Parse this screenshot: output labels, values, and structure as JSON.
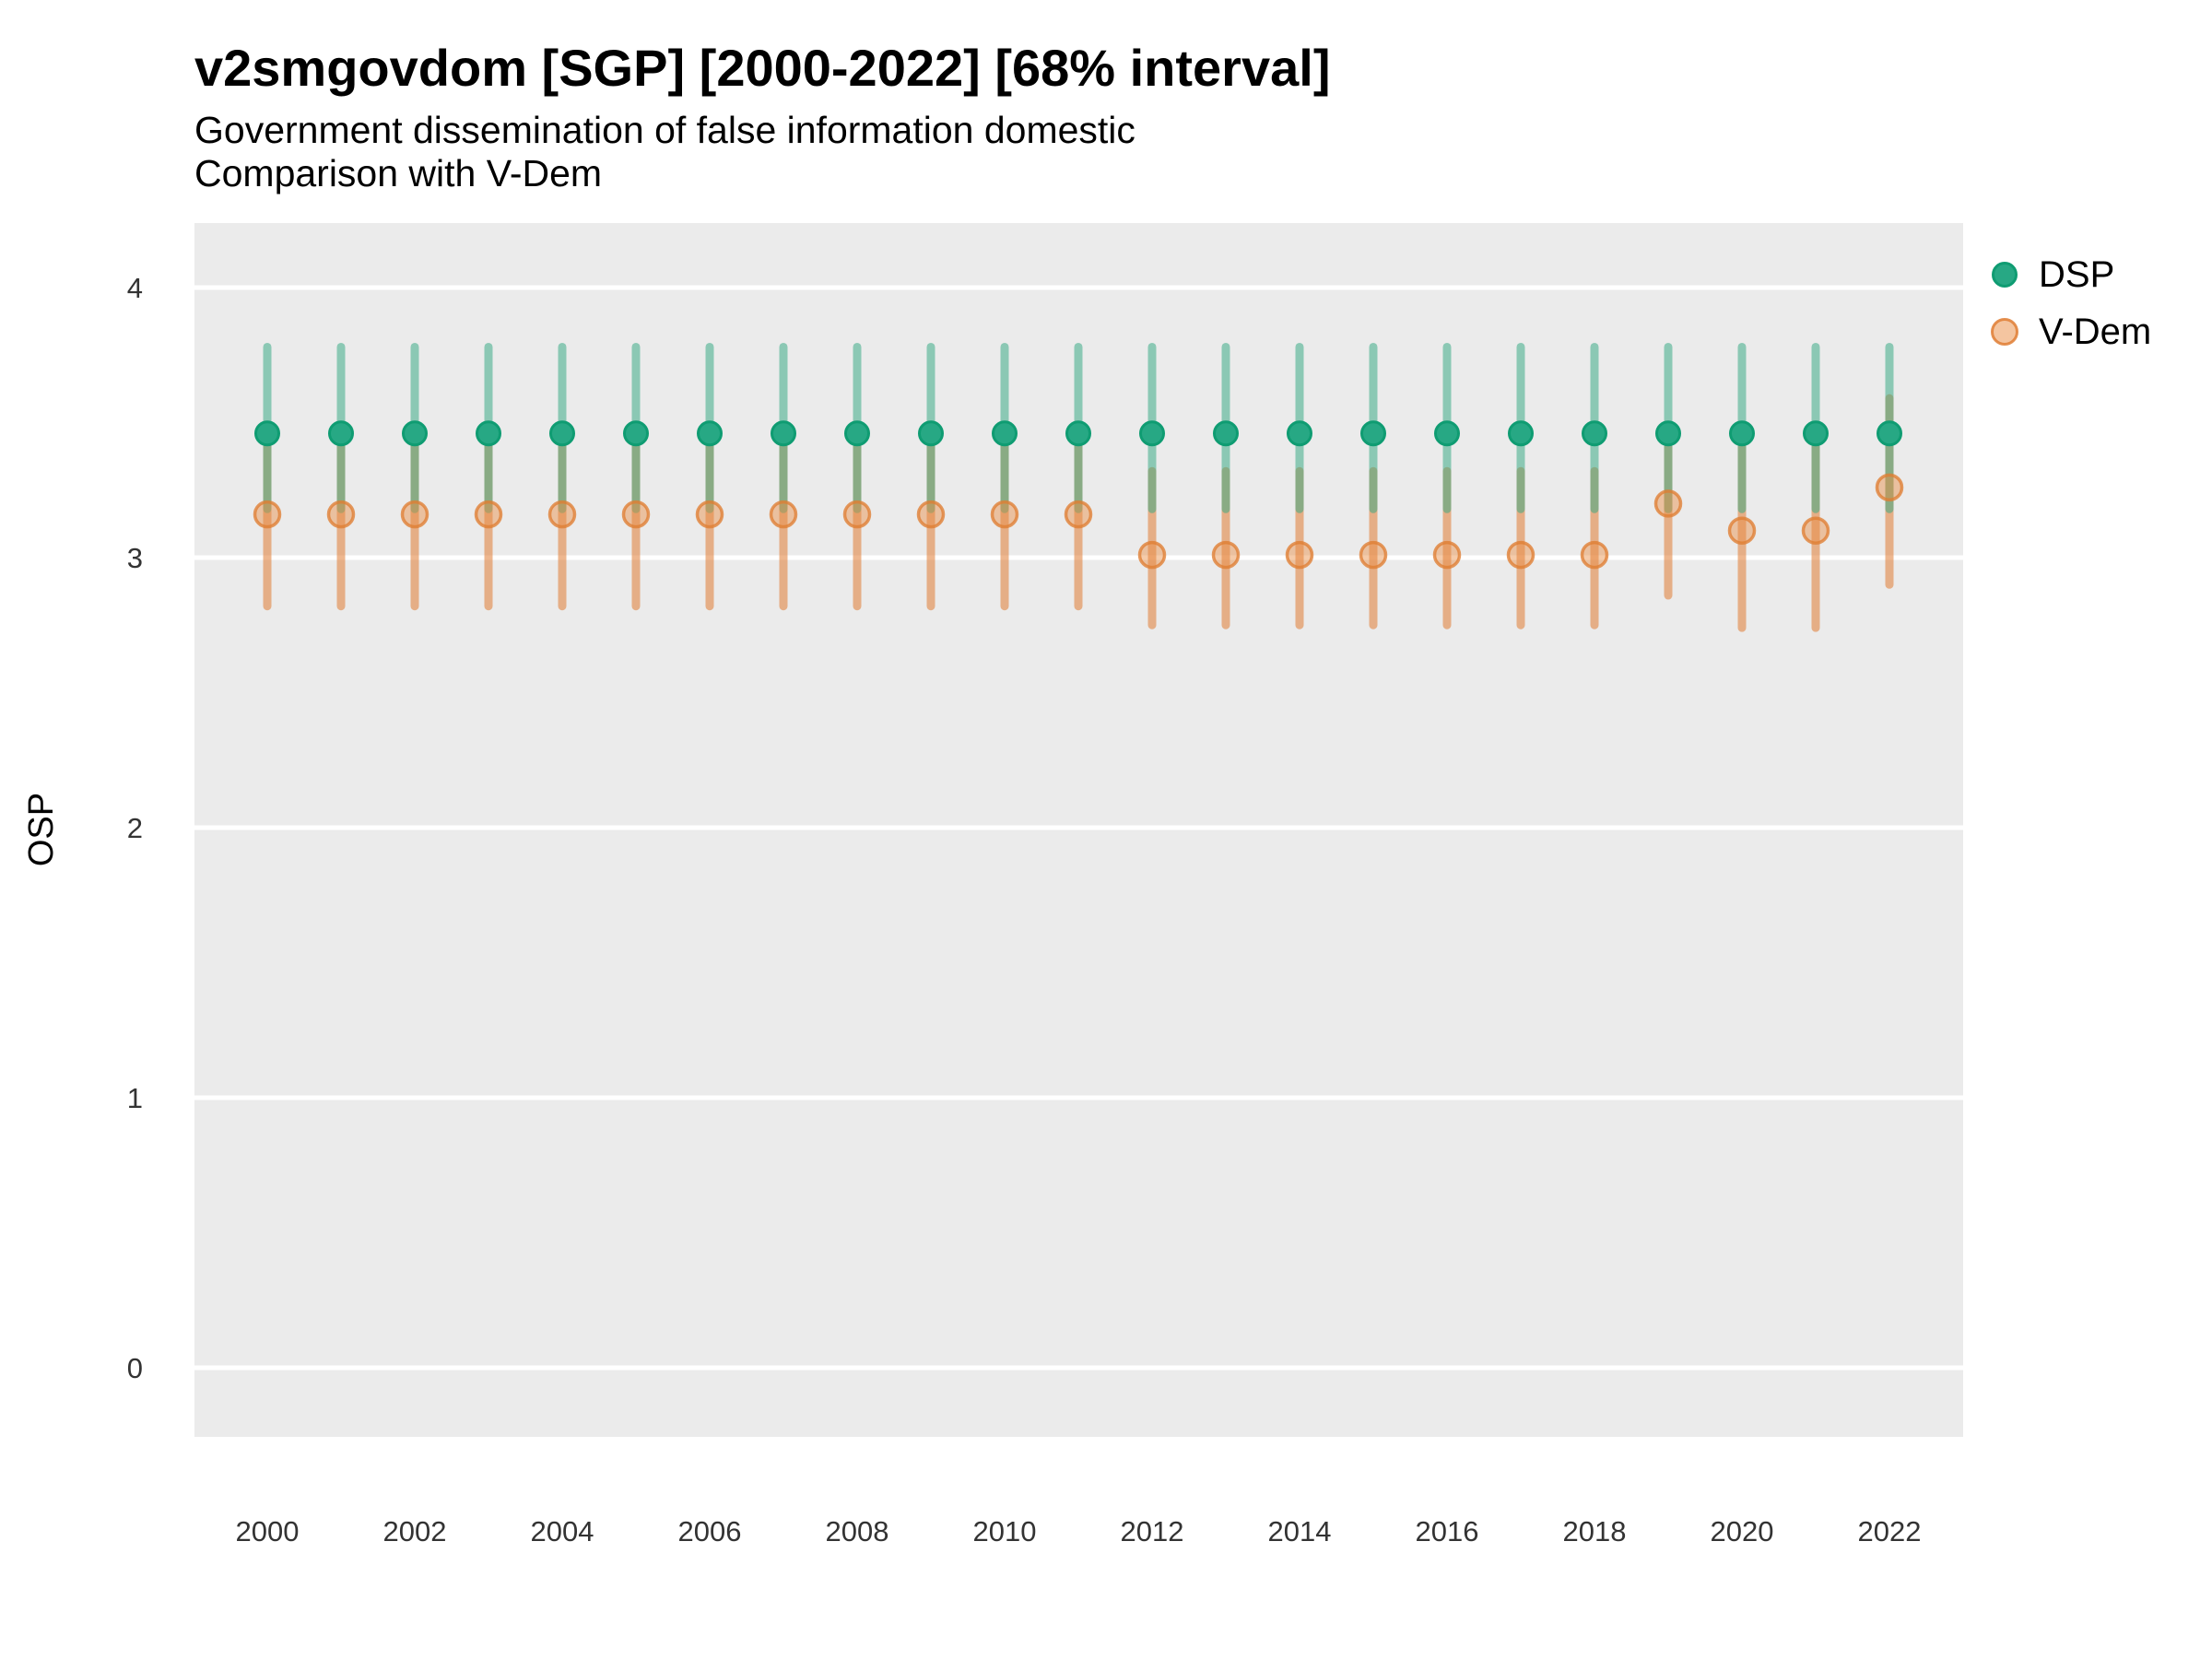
{
  "colors": {
    "background": "#FFFFFF",
    "panel": "#EBEBEB",
    "gridline": "#FFFFFF",
    "title_text": "#000000",
    "tick_text": "#333333",
    "dsp_green": "#27A884",
    "vdem_orange": "#E07B33"
  },
  "legend": {
    "items": [
      {
        "label": "DSP"
      },
      {
        "label": "V-Dem"
      }
    ]
  },
  "chart_data": {
    "type": "pointrange",
    "title": "v2smgovdom [SGP] [2000-2022] [68% interval]",
    "subtitle_line1": "Government dissemination of false information domestic",
    "subtitle_line2": "Comparison with V-Dem",
    "xlabel": "",
    "ylabel": "OSP",
    "interval_note": "68% interval",
    "legend_position": "right",
    "grid": "major horizontal white lines on grey panel",
    "xlim": [
      1999,
      2023
    ],
    "ylim": [
      -0.26,
      4.24
    ],
    "y_tick_values": [
      0,
      1,
      2,
      3,
      4
    ],
    "y_tick_labels": [
      "0",
      "1",
      "2",
      "3",
      "4"
    ],
    "x_tick_values": [
      2000,
      2002,
      2004,
      2006,
      2008,
      2010,
      2012,
      2014,
      2016,
      2018,
      2020,
      2022
    ],
    "x_tick_labels": [
      "2000",
      "2002",
      "2004",
      "2006",
      "2008",
      "2010",
      "2012",
      "2014",
      "2016",
      "2018",
      "2020",
      "2022"
    ],
    "years": [
      2000,
      2001,
      2002,
      2003,
      2004,
      2005,
      2006,
      2007,
      2008,
      2009,
      2010,
      2011,
      2012,
      2013,
      2014,
      2015,
      2016,
      2017,
      2018,
      2019,
      2020,
      2021,
      2022
    ],
    "series": [
      {
        "name": "DSP",
        "bar_color": "#34A883",
        "bar_opacity": 0.52,
        "dot_fill": "#27A884",
        "dot_fill_opacity": 1,
        "dot_stroke": "#0F9C72",
        "dot_stroke_opacity": 1,
        "est": [
          3.46,
          3.46,
          3.46,
          3.46,
          3.46,
          3.46,
          3.46,
          3.46,
          3.46,
          3.46,
          3.46,
          3.46,
          3.46,
          3.46,
          3.46,
          3.46,
          3.46,
          3.46,
          3.46,
          3.46,
          3.46,
          3.46,
          3.46
        ],
        "lo": [
          3.18,
          3.18,
          3.18,
          3.18,
          3.18,
          3.18,
          3.18,
          3.18,
          3.18,
          3.18,
          3.18,
          3.18,
          3.18,
          3.18,
          3.18,
          3.18,
          3.18,
          3.18,
          3.18,
          3.18,
          3.18,
          3.18,
          3.18
        ],
        "hi": [
          3.78,
          3.78,
          3.78,
          3.78,
          3.78,
          3.78,
          3.78,
          3.78,
          3.78,
          3.78,
          3.78,
          3.78,
          3.78,
          3.78,
          3.78,
          3.78,
          3.78,
          3.78,
          3.78,
          3.78,
          3.78,
          3.78,
          3.78
        ]
      },
      {
        "name": "V-Dem",
        "bar_color": "#E07B33",
        "bar_opacity": 0.55,
        "dot_fill": "#E98C42",
        "dot_fill_opacity": 0.45,
        "dot_stroke": "#DF7D32",
        "dot_stroke_opacity": 0.78,
        "est": [
          3.16,
          3.16,
          3.16,
          3.16,
          3.16,
          3.16,
          3.16,
          3.16,
          3.16,
          3.16,
          3.16,
          3.16,
          3.01,
          3.01,
          3.01,
          3.01,
          3.01,
          3.01,
          3.01,
          3.2,
          3.1,
          3.1,
          3.26
        ],
        "lo": [
          2.82,
          2.82,
          2.82,
          2.82,
          2.82,
          2.82,
          2.82,
          2.82,
          2.82,
          2.82,
          2.82,
          2.82,
          2.75,
          2.75,
          2.75,
          2.75,
          2.75,
          2.75,
          2.75,
          2.86,
          2.74,
          2.74,
          2.9
        ],
        "hi": [
          3.42,
          3.42,
          3.42,
          3.42,
          3.42,
          3.42,
          3.42,
          3.42,
          3.42,
          3.42,
          3.42,
          3.42,
          3.32,
          3.32,
          3.32,
          3.32,
          3.32,
          3.32,
          3.32,
          3.41,
          3.41,
          3.41,
          3.59
        ]
      }
    ]
  }
}
